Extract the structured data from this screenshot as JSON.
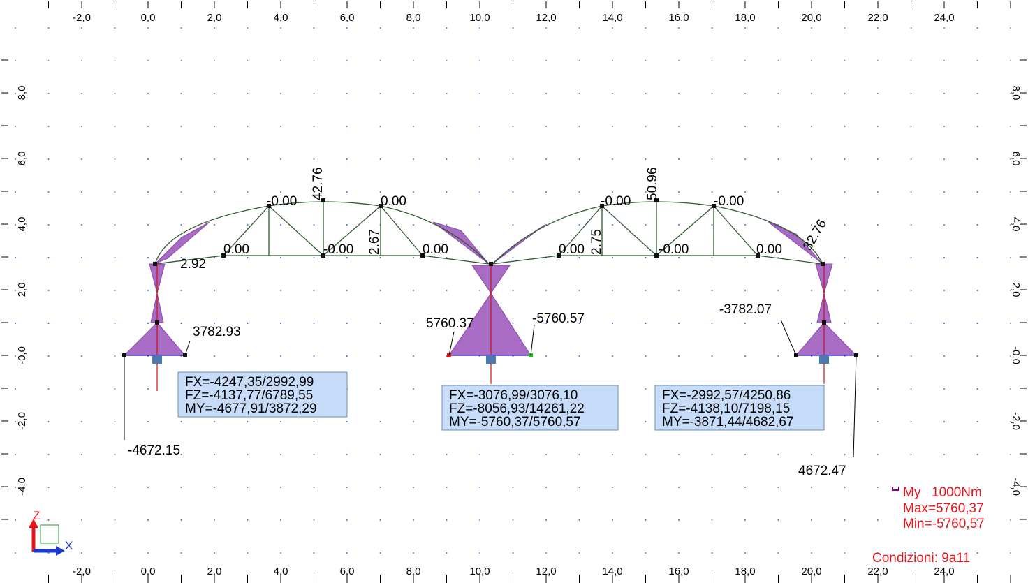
{
  "x_ticks": [
    "-2,0",
    "0,0",
    "2,0",
    "4,0",
    "6,0",
    "8,0",
    "10,0",
    "12,0",
    "14,0",
    "16,0",
    "18,0",
    "20,0",
    "22,0",
    "24,0"
  ],
  "y_ticks": [
    "8,0",
    "6,0",
    "4,0",
    "2,0",
    "-0,0",
    "-2,0",
    "-4,0"
  ],
  "value_labels": [
    "42.76",
    "-0.00",
    "0.00",
    "0.00",
    "-0.00",
    "0.00",
    "2.67",
    "50.96",
    "-0.00",
    "-0.00",
    "0.00",
    "-0.00",
    "0.00",
    "2.75",
    "32.76",
    "2.92",
    "3782.93",
    "5760.37",
    "-5760.57",
    "-3782.07",
    "-4672.15",
    "4672.47"
  ],
  "reactions": [
    [
      "FX=-4247,35/2992,99",
      "FZ=-4137,77/6789,55",
      "MY=-4677,91/3872,29"
    ],
    [
      "FX=-3076,99/3076,10",
      "FZ=-8056,93/14261,22",
      "MY=-5760,37/5760,57"
    ],
    [
      "FX=-2992,57/4250,86",
      "FZ=-4138,10/7198,15",
      "MY=-3871,44/4682,67"
    ]
  ],
  "legend": {
    "quantity": "My",
    "unit": "1000Nm",
    "max": "Max=5760,37",
    "min": "Min=-5760,57"
  },
  "conditions": "Condizioni: 9a11",
  "axis_icon": {
    "z": "Z",
    "x": "X"
  }
}
